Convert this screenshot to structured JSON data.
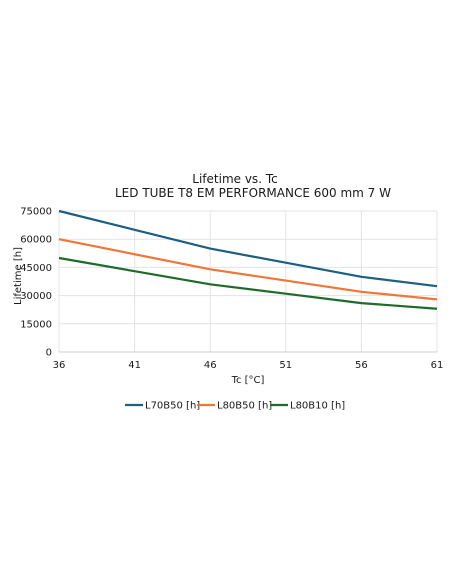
{
  "chart_data": {
    "type": "line",
    "title": "Lifetime vs. Tc",
    "subtitle": "LED TUBE T8 EM PERFORMANCE 600 mm 7 W",
    "xlabel": "Tc [°C]",
    "ylabel": "Lifetime [h]",
    "x": [
      36,
      41,
      46,
      51,
      56,
      61
    ],
    "xlim": [
      36,
      61
    ],
    "ylim": [
      0,
      75000
    ],
    "yticks": [
      0,
      15000,
      30000,
      45000,
      60000,
      75000
    ],
    "grid": true,
    "legend_position": "bottom",
    "series": [
      {
        "name": "L70B50 [h]",
        "color": "#1d5f82",
        "values": [
          75000,
          65000,
          55000,
          47500,
          40000,
          35000
        ]
      },
      {
        "name": "L80B50 [h]",
        "color": "#ee7739",
        "values": [
          60000,
          52000,
          44000,
          38000,
          32000,
          28000
        ]
      },
      {
        "name": "L80B10 [h]",
        "color": "#1f6b2a",
        "values": [
          50000,
          43000,
          36000,
          31000,
          26000,
          23000
        ]
      }
    ]
  }
}
